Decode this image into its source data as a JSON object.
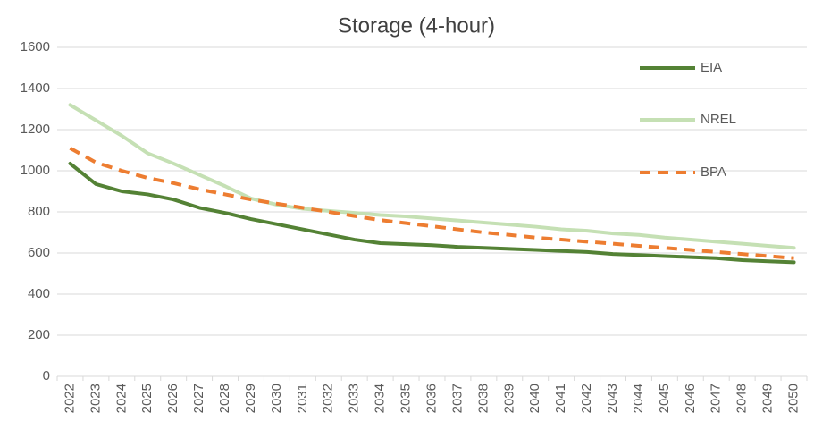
{
  "chart_data": {
    "type": "line",
    "title": "Storage (4-hour)",
    "categories": [
      "2022",
      "2023",
      "2024",
      "2025",
      "2026",
      "2027",
      "2028",
      "2029",
      "2030",
      "2031",
      "2032",
      "2033",
      "2034",
      "2035",
      "2036",
      "2037",
      "2038",
      "2039",
      "2040",
      "2041",
      "2042",
      "2043",
      "2044",
      "2045",
      "2046",
      "2047",
      "2048",
      "2049",
      "2050"
    ],
    "series": [
      {
        "name": "EIA",
        "color": "#548235",
        "values": [
          1035,
          935,
          900,
          885,
          860,
          820,
          795,
          765,
          740,
          715,
          690,
          665,
          648,
          643,
          638,
          630,
          625,
          620,
          615,
          610,
          605,
          595,
          590,
          585,
          580,
          575,
          565,
          560,
          555
        ]
      },
      {
        "name": "NREL",
        "color": "#c5e0b4",
        "values": [
          1320,
          1245,
          1170,
          1085,
          1035,
          980,
          925,
          865,
          835,
          815,
          805,
          795,
          785,
          778,
          768,
          758,
          748,
          738,
          728,
          715,
          708,
          695,
          688,
          675,
          665,
          655,
          645,
          635,
          625
        ]
      },
      {
        "name": "BPA",
        "color": "#ed7d31",
        "dashed": true,
        "values": [
          1110,
          1040,
          1000,
          965,
          940,
          910,
          885,
          860,
          840,
          820,
          800,
          780,
          760,
          745,
          730,
          715,
          700,
          688,
          675,
          665,
          655,
          645,
          635,
          625,
          615,
          605,
          595,
          585,
          575
        ]
      }
    ],
    "ylim": [
      0,
      1600
    ],
    "yticks": [
      0,
      200,
      400,
      600,
      800,
      1000,
      1200,
      1400,
      1600
    ],
    "grid": true,
    "legend": "top-right"
  }
}
